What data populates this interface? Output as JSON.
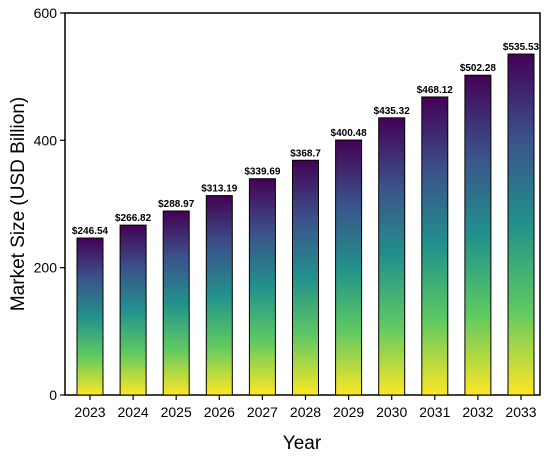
{
  "chart_data": {
    "type": "bar",
    "title": "",
    "xlabel": "Year",
    "ylabel": "Market Size (USD Billion)",
    "categories": [
      "2023",
      "2024",
      "2025",
      "2026",
      "2027",
      "2028",
      "2029",
      "2030",
      "2031",
      "2032",
      "2033"
    ],
    "values": [
      246.54,
      266.82,
      288.97,
      313.19,
      339.69,
      368.7,
      400.48,
      435.32,
      468.12,
      502.28,
      535.53
    ],
    "data_labels": [
      "$246.54",
      "$266.82",
      "$288.97",
      "$313.19",
      "$339.69",
      "$368.7",
      "$400.48",
      "$435.32",
      "$468.12",
      "$502.28",
      "$535.53"
    ],
    "ylim": [
      0,
      600
    ],
    "yticks": [
      "0",
      "200",
      "400",
      "600"
    ],
    "grid": false,
    "bar_gradient": [
      "#fde725",
      "#5ec962",
      "#21918c",
      "#3b528b",
      "#440154"
    ]
  }
}
